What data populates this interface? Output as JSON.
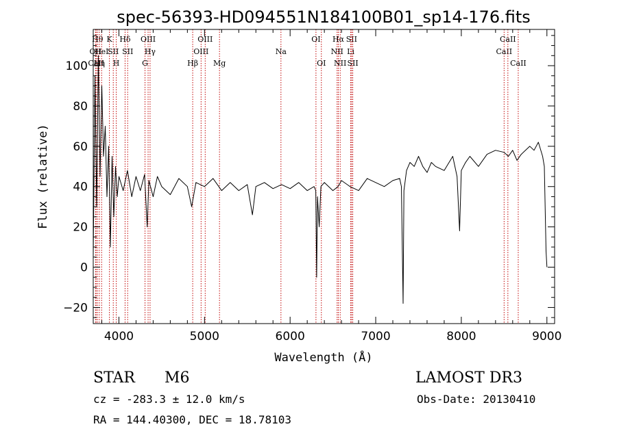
{
  "chart_data": {
    "type": "line",
    "title": "spec-56393-HD094551N184100B01_sp14-176.fits",
    "xlabel": "Wavelength (Å)",
    "ylabel": "Flux (relative)",
    "xlim": [
      3700,
      9090
    ],
    "ylim": [
      -28,
      118
    ],
    "xticks": [
      4000,
      5000,
      6000,
      7000,
      8000,
      9000
    ],
    "yticks": [
      -20,
      0,
      20,
      40,
      60,
      80,
      100
    ],
    "grid": false,
    "line_color": "#000000",
    "marker_color": "#c00000",
    "series": [
      {
        "x": [
          3700,
          3720,
          3740,
          3760,
          3780,
          3800,
          3820,
          3840,
          3860,
          3880,
          3900,
          3920,
          3940,
          3960,
          3980,
          4000,
          4050,
          4100,
          4150,
          4200,
          4250,
          4300,
          4330,
          4350,
          4400,
          4450,
          4500,
          4600,
          4700,
          4800,
          4850,
          4900,
          5000,
          5100,
          5200,
          5300,
          5400,
          5500,
          5560,
          5600,
          5700,
          5800,
          5900,
          6000,
          6100,
          6200,
          6280,
          6300,
          6310,
          6320,
          6340,
          6360,
          6400,
          6500,
          6560,
          6600,
          6700,
          6800,
          6900,
          7000,
          7100,
          7200,
          7280,
          7300,
          7320,
          7330,
          7360,
          7400,
          7450,
          7500,
          7550,
          7600,
          7650,
          7700,
          7800,
          7900,
          7950,
          7980,
          8000,
          8050,
          8100,
          8200,
          8300,
          8400,
          8500,
          8550,
          8600,
          8650,
          8700,
          8800,
          8850,
          8900,
          8950,
          8970,
          8990,
          9000
        ],
        "y": [
          5,
          95,
          30,
          105,
          45,
          90,
          55,
          70,
          35,
          60,
          10,
          55,
          25,
          50,
          35,
          45,
          38,
          48,
          35,
          45,
          38,
          46,
          20,
          43,
          35,
          45,
          40,
          36,
          44,
          40,
          30,
          42,
          40,
          44,
          38,
          42,
          38,
          41,
          26,
          40,
          42,
          39,
          41,
          39,
          42,
          38,
          40,
          38,
          -5,
          35,
          20,
          40,
          42,
          38,
          40,
          43,
          40,
          38,
          44,
          42,
          40,
          43,
          44,
          40,
          -18,
          38,
          48,
          52,
          50,
          55,
          50,
          47,
          52,
          50,
          48,
          55,
          45,
          18,
          48,
          52,
          55,
          50,
          56,
          58,
          57,
          55,
          58,
          53,
          56,
          60,
          58,
          62,
          55,
          50,
          8,
          0
        ]
      }
    ],
    "line_markers": [
      {
        "label": "OII",
        "x": 3727,
        "row": 1
      },
      {
        "label": "CaII",
        "x": 3734,
        "row": 2
      },
      {
        "label": "Hθ",
        "x": 3750,
        "row": 0
      },
      {
        "label": "Hη",
        "x": 3771,
        "row": 2
      },
      {
        "label": "HeI",
        "x": 3798,
        "row": 1
      },
      {
        "label": "K",
        "x": 3889,
        "row": 0
      },
      {
        "label": "SII",
        "x": 3934,
        "row": 1
      },
      {
        "label": "H",
        "x": 3969,
        "row": 2
      },
      {
        "label": "Hδ",
        "x": 4072,
        "row": 0
      },
      {
        "label": "SII",
        "x": 4102,
        "row": 1
      },
      {
        "label": "G",
        "x": 4305,
        "row": 2
      },
      {
        "label": "OIII",
        "x": 4341,
        "row": 0
      },
      {
        "label": "Hγ",
        "x": 4364,
        "row": 1
      },
      {
        "label": "Hβ",
        "x": 4862,
        "row": 2
      },
      {
        "label": "OIII",
        "x": 4960,
        "row": 1
      },
      {
        "label": "OIII",
        "x": 5008,
        "row": 0
      },
      {
        "label": "Mg",
        "x": 5175,
        "row": 2
      },
      {
        "label": "Na",
        "x": 5893,
        "row": 1
      },
      {
        "label": "OI",
        "x": 6302,
        "row": 0
      },
      {
        "label": "OI",
        "x": 6365,
        "row": 2
      },
      {
        "label": "NII",
        "x": 6549,
        "row": 1
      },
      {
        "label": "Hα",
        "x": 6563,
        "row": 0
      },
      {
        "label": "NII",
        "x": 6585,
        "row": 2
      },
      {
        "label": "Li",
        "x": 6708,
        "row": 1
      },
      {
        "label": "SII",
        "x": 6718,
        "row": 0
      },
      {
        "label": "SII",
        "x": 6732,
        "row": 2
      },
      {
        "label": "CaII",
        "x": 8500,
        "row": 1
      },
      {
        "label": "CaII",
        "x": 8544,
        "row": 0
      },
      {
        "label": "CaII",
        "x": 8665,
        "row": 2
      }
    ]
  },
  "info": {
    "object_class": "STAR",
    "subclass": "M6",
    "survey": "LAMOST DR3",
    "cz": "cz = -283.3 ± 12.0 km/s",
    "obs_date": "Obs-Date: 20130410",
    "coords": "RA = 144.40300, DEC =  18.78103"
  }
}
